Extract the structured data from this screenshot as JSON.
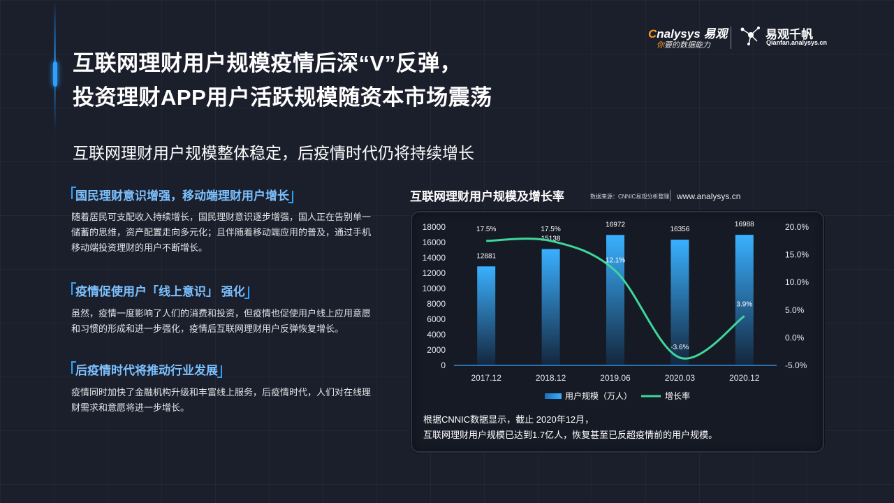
{
  "page": {
    "title_line1": "互联网理财用户规模疫情后深“V”反弹，",
    "title_line2": "投资理财APP用户活跃规模随资本市场震荡",
    "subtitle": "互联网理财用户规模整体稳定，后疫情时代仍将持续增长"
  },
  "logo": {
    "brand_lead": "nalysys",
    "brand_cn": "易观",
    "tagline_lead": "你",
    "tagline_rest": "要的数据能力",
    "partner_name": "易观千帆",
    "partner_url": "Qianfan.analysys.cn"
  },
  "sections": [
    {
      "heading": "国民理财意识增强，移动端理财用户增长",
      "body": "随着居民可支配收入持续增长，国民理财意识逐步增强，国人正在告别单一储蓄的思维，资产配置走向多元化；且伴随着移动端应用的普及，通过手机移动端投资理财的用户不断增长。"
    },
    {
      "heading": "疫情促使用户「线上意识」 强化",
      "body": "虽然，疫情一度影响了人们的消费和投资，但疫情也促使用户线上应用意愿和习惯的形成和进一步强化，疫情后互联网理财用户反弹恢复增长。"
    },
    {
      "heading": "后疫情时代将推动行业发展",
      "body": "疫情同时加快了金融机构升级和丰富线上服务，后疫情时代，人们对在线理财需求和意愿将进一步增长。"
    }
  ],
  "chart_header": {
    "source": "数据来源：CNNIC易观分析整理",
    "url": "www.analysys.cn"
  },
  "chart_data": {
    "type": "bar",
    "title": "互联网理财用户规模及增长率",
    "categories": [
      "2017.12",
      "2018.12",
      "2019.06",
      "2020.03",
      "2020.12"
    ],
    "series": [
      {
        "name": "用户规模（万人）",
        "type": "bar",
        "axis": "left",
        "values": [
          12881,
          15138,
          16972,
          16356,
          16988
        ],
        "labels": [
          "12881",
          "15138",
          "16972",
          "16356",
          "16988"
        ]
      },
      {
        "name": "增长率",
        "type": "line",
        "axis": "right",
        "values": [
          17.5,
          17.5,
          12.1,
          -3.6,
          3.9
        ],
        "labels": [
          "17.5%",
          "17.5%",
          "12.1%",
          "-3.6%",
          "3.9%"
        ]
      }
    ],
    "y_left": {
      "min": 0,
      "max": 18000,
      "ticks": [
        "0",
        "2000",
        "4000",
        "6000",
        "8000",
        "10000",
        "12000",
        "14000",
        "16000",
        "18000"
      ]
    },
    "y_right": {
      "min": -5,
      "max": 20,
      "ticks": [
        "-5.0%",
        "0.0%",
        "5.0%",
        "10.0%",
        "15.0%",
        "20.0%"
      ]
    },
    "legend_position": "bottom-center",
    "grid": false,
    "colors": {
      "bar_top": "#3ab0ff",
      "bar_bottom": "#14263d",
      "line": "#3fd69b"
    }
  },
  "note": {
    "line1": "根据CNNIC数据显示，截止 2020年12月，",
    "line2": "互联网理财用户规模已达到1.7亿人，恢复甚至已反超疫情前的用户规模。"
  }
}
